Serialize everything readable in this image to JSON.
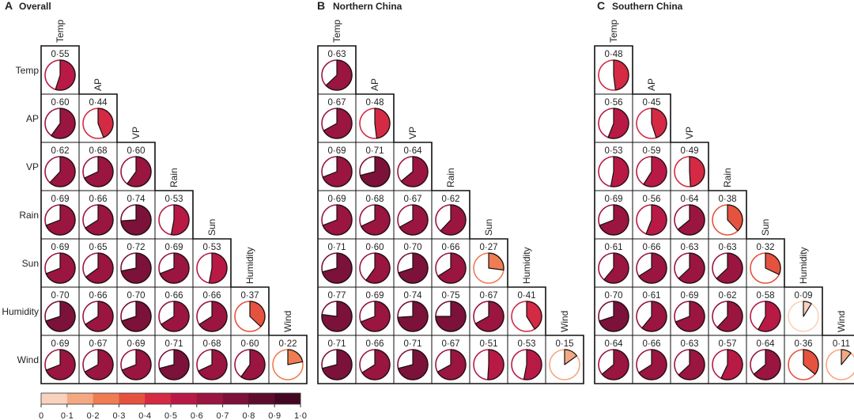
{
  "chart_data": {
    "type": "pie-correlation-matrix",
    "variables": [
      "Temp",
      "AP",
      "VP",
      "Rain",
      "Sun",
      "Humidity",
      "Wind"
    ],
    "panels": [
      {
        "letter": "A",
        "title": "Overall",
        "values": [
          [
            0.55
          ],
          [
            0.6,
            0.44
          ],
          [
            0.62,
            0.68,
            0.6
          ],
          [
            0.69,
            0.66,
            0.74,
            0.53
          ],
          [
            0.69,
            0.65,
            0.72,
            0.69,
            0.53
          ],
          [
            0.7,
            0.66,
            0.7,
            0.66,
            0.66,
            0.37
          ],
          [
            0.69,
            0.67,
            0.69,
            0.71,
            0.68,
            0.6,
            0.22
          ]
        ],
        "value_labels": [
          [
            "0·55"
          ],
          [
            "0·60",
            "0·44"
          ],
          [
            "0·62",
            "0·68",
            "0·60"
          ],
          [
            "0·69",
            "0·66",
            "0·74",
            "0·53"
          ],
          [
            "0·69",
            "0·65",
            "0·72",
            "0·69",
            "0·53"
          ],
          [
            "0·70",
            "0·66",
            "0·70",
            "0·66",
            "0·66",
            "0·37"
          ],
          [
            "0·69",
            "0·67",
            "0·69",
            "0·71",
            "0·68",
            "0·60",
            "0·22"
          ]
        ]
      },
      {
        "letter": "B",
        "title": "Northern China",
        "values": [
          [
            0.63
          ],
          [
            0.67,
            0.48
          ],
          [
            0.69,
            0.71,
            0.64
          ],
          [
            0.69,
            0.68,
            0.67,
            0.62
          ],
          [
            0.71,
            0.6,
            0.7,
            0.66,
            0.27
          ],
          [
            0.77,
            0.69,
            0.74,
            0.75,
            0.67,
            0.41
          ],
          [
            0.71,
            0.66,
            0.71,
            0.67,
            0.51,
            0.53,
            0.15
          ]
        ],
        "value_labels": [
          [
            "0·63"
          ],
          [
            "0·67",
            "0·48"
          ],
          [
            "0·69",
            "0·71",
            "0·64"
          ],
          [
            "0·69",
            "0·68",
            "0·67",
            "0·62"
          ],
          [
            "0·71",
            "0·60",
            "0·70",
            "0·66",
            "0·27"
          ],
          [
            "0·77",
            "0·69",
            "0·74",
            "0·75",
            "0·67",
            "0·41"
          ],
          [
            "0·71",
            "0·66",
            "0·71",
            "0·67",
            "0·51",
            "0·53",
            "0·15"
          ]
        ]
      },
      {
        "letter": "C",
        "title": "Southern China",
        "values": [
          [
            0.48
          ],
          [
            0.56,
            0.45
          ],
          [
            0.53,
            0.59,
            0.49
          ],
          [
            0.69,
            0.56,
            0.64,
            0.38
          ],
          [
            0.61,
            0.66,
            0.63,
            0.63,
            0.32
          ],
          [
            0.7,
            0.61,
            0.69,
            0.62,
            0.58,
            0.09
          ],
          [
            0.64,
            0.66,
            0.63,
            0.57,
            0.64,
            0.36,
            0.11
          ]
        ],
        "value_labels": [
          [
            "0·48"
          ],
          [
            "0·56",
            "0·45"
          ],
          [
            "0·53",
            "0·59",
            "0·49"
          ],
          [
            "0·69",
            "0·56",
            "0·64",
            "0·38"
          ],
          [
            "0·61",
            "0·66",
            "0·63",
            "0·63",
            "0·32"
          ],
          [
            "0·70",
            "0·61",
            "0·69",
            "0·62",
            "0·58",
            "0·09"
          ],
          [
            "0·64",
            "0·66",
            "0·63",
            "0·57",
            "0·64",
            "0·36",
            "0·11"
          ]
        ]
      }
    ],
    "colorbar": {
      "range": [
        0,
        1
      ],
      "tick_labels": [
        "0",
        "0·1",
        "0·2",
        "0·3",
        "0·4",
        "0·5",
        "0·6",
        "0·7",
        "0·8",
        "0·9",
        "1·0"
      ],
      "colors": [
        "#f9d2bd",
        "#f4a882",
        "#ef7c53",
        "#e5533f",
        "#d42a44",
        "#b81a45",
        "#9a153f",
        "#7c1139",
        "#5e0c2e",
        "#430723"
      ]
    }
  }
}
